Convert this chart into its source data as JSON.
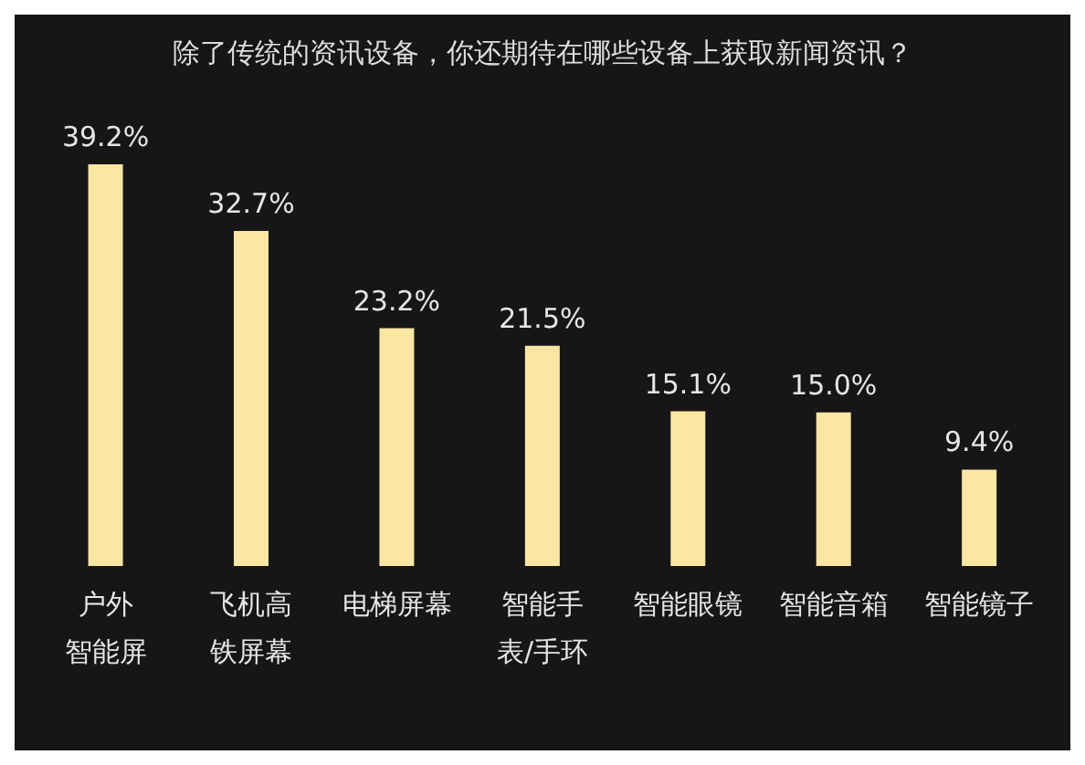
{
  "chart_data": {
    "type": "bar",
    "title": "除了传统的资讯设备，你还期待在哪些设备上获取新闻资讯？",
    "categories": [
      "户外智能屏",
      "飞机高铁屏幕",
      "电梯屏幕",
      "智能手表/手环",
      "智能眼镜",
      "智能音箱",
      "智能镜子"
    ],
    "values": [
      39.2,
      32.7,
      23.2,
      21.5,
      15.1,
      15.0,
      9.4
    ],
    "value_labels": [
      "39.2%",
      "32.7%",
      "23.2%",
      "21.5%",
      "15.1%",
      "15.0%",
      "9.4%"
    ],
    "color": "#fbe6a2"
  }
}
